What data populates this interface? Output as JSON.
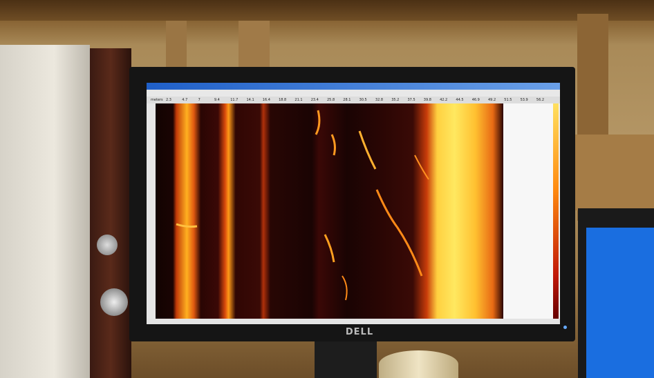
{
  "monitor": {
    "brand": "DELL"
  },
  "app": {
    "axis_label": "meters",
    "range_ticks": [
      "2.3",
      "4.7",
      "7",
      "9.4",
      "11.7",
      "14.1",
      "16.4",
      "18.8",
      "21.1",
      "23.4",
      "25.8",
      "28.1",
      "30.5",
      "32.8",
      "35.2",
      "37.5",
      "39.8",
      "42.2",
      "44.5",
      "46.9",
      "49.2",
      "51.5",
      "53.9",
      "56.2"
    ]
  }
}
